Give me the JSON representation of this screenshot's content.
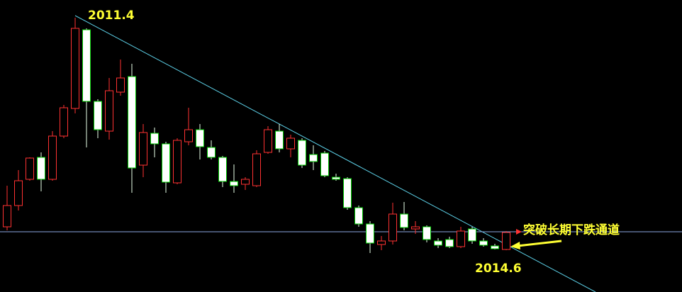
{
  "chart_data": {
    "type": "candlestick",
    "open": [
      92,
      122,
      159,
      190,
      159,
      220,
      259,
      370,
      269,
      227,
      282,
      304,
      179,
      224,
      209,
      154,
      212,
      229,
      204,
      190,
      156,
      152,
      150,
      197,
      227,
      202,
      214,
      194,
      196,
      162,
      160,
      119,
      96,
      67,
      72,
      110,
      89,
      92,
      72,
      74,
      64,
      89,
      72,
      65,
      60
    ],
    "high": [
      150,
      172,
      190,
      197,
      227,
      264,
      387,
      372,
      272,
      302,
      328,
      322,
      237,
      232,
      212,
      217,
      260,
      237,
      214,
      192,
      180,
      162,
      200,
      234,
      237,
      222,
      217,
      207,
      199,
      167,
      162,
      122,
      100,
      79,
      126,
      127,
      100,
      94,
      76,
      78,
      92,
      92,
      76,
      68,
      86
    ],
    "low": [
      87,
      115,
      157,
      142,
      157,
      217,
      252,
      204,
      217,
      215,
      277,
      140,
      162,
      190,
      140,
      152,
      207,
      187,
      187,
      148,
      140,
      144,
      148,
      195,
      197,
      190,
      175,
      172,
      162,
      157,
      116,
      92,
      55,
      59,
      67,
      87,
      82,
      70,
      62,
      62,
      62,
      68,
      64,
      60,
      59
    ],
    "close": [
      122,
      157,
      189,
      159,
      220,
      260,
      372,
      269,
      229,
      284,
      302,
      175,
      225,
      209,
      155,
      214,
      229,
      205,
      190,
      156,
      150,
      159,
      195,
      229,
      202,
      217,
      179,
      184,
      164,
      159,
      119,
      96,
      69,
      72,
      110,
      91,
      92,
      74,
      66,
      64,
      86,
      72,
      66,
      61,
      84
    ],
    "ylim": [
      0,
      412
    ],
    "up_color": "#ff3232",
    "down_color": "#00c800",
    "reference_line": 85,
    "annotations": [
      "2011.4",
      "2014.6",
      "突破长期下跌通道"
    ]
  }
}
